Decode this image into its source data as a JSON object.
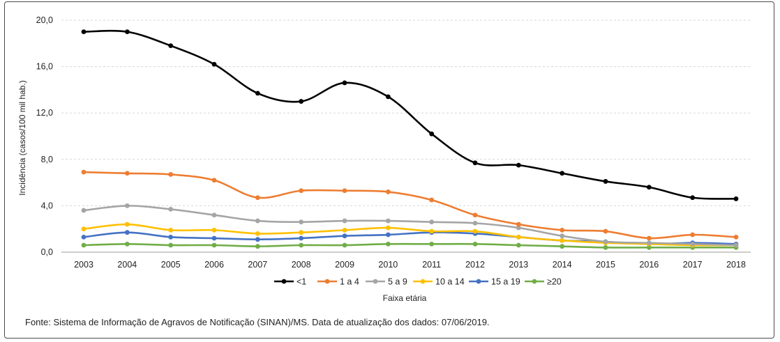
{
  "chart_data": {
    "type": "line",
    "title": "",
    "xlabel": "Faixa etária",
    "ylabel": "Incidência (casos/100 mil hab.)",
    "ylim": [
      0,
      20
    ],
    "y_ticks": [
      "0,0",
      "4,0",
      "8,0",
      "12,0",
      "16,0",
      "20,0"
    ],
    "y_tick_values": [
      0,
      4,
      8,
      12,
      16,
      20
    ],
    "grid": true,
    "legend_position": "bottom",
    "x": [
      "2003",
      "2004",
      "2005",
      "2006",
      "2007",
      "2008",
      "2009",
      "2010",
      "2011",
      "2012",
      "2013",
      "2014",
      "2015",
      "2016",
      "2017",
      "2018"
    ],
    "series": [
      {
        "name": "<1",
        "color": "#000000",
        "values": [
          19.0,
          19.0,
          17.8,
          16.2,
          13.7,
          13.0,
          14.6,
          13.4,
          10.2,
          7.7,
          7.5,
          6.8,
          6.1,
          5.6,
          4.7,
          4.6
        ]
      },
      {
        "name": "1 a 4",
        "color": "#ED7D31",
        "values": [
          6.9,
          6.8,
          6.7,
          6.2,
          4.7,
          5.3,
          5.3,
          5.2,
          4.5,
          3.2,
          2.4,
          1.9,
          1.8,
          1.2,
          1.5,
          1.3
        ]
      },
      {
        "name": "5 a 9",
        "color": "#A5A5A5",
        "values": [
          3.6,
          4.0,
          3.7,
          3.2,
          2.7,
          2.6,
          2.7,
          2.7,
          2.6,
          2.5,
          2.1,
          1.4,
          0.9,
          0.8,
          0.7,
          0.6
        ]
      },
      {
        "name": "10 a 14",
        "color": "#FFC000",
        "values": [
          2.0,
          2.4,
          1.9,
          1.9,
          1.6,
          1.7,
          1.9,
          2.1,
          1.8,
          1.8,
          1.3,
          1.0,
          0.8,
          0.7,
          0.6,
          0.6
        ]
      },
      {
        "name": "15 a 19",
        "color": "#4472C4",
        "values": [
          1.3,
          1.7,
          1.3,
          1.2,
          1.1,
          1.2,
          1.4,
          1.5,
          1.7,
          1.6,
          1.3,
          1.0,
          0.9,
          0.7,
          0.8,
          0.7
        ]
      },
      {
        "name": "≥20",
        "color": "#70AD47",
        "values": [
          0.6,
          0.7,
          0.6,
          0.6,
          0.5,
          0.6,
          0.6,
          0.7,
          0.7,
          0.7,
          0.6,
          0.5,
          0.4,
          0.4,
          0.4,
          0.4
        ]
      }
    ]
  },
  "source_text": "Fonte: Sistema de Informação de Agravos de Notificação (SINAN)/MS. Data de atualização dos dados: 07/06/2019."
}
